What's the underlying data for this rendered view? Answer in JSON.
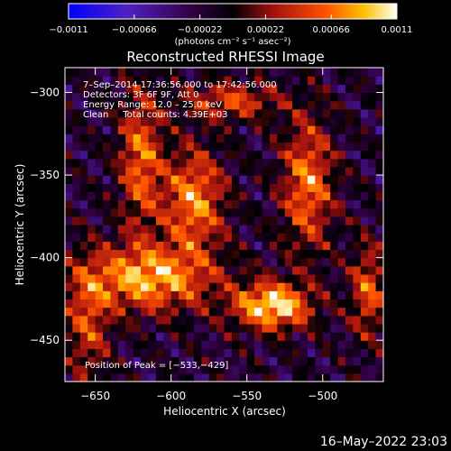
{
  "chart_data": {
    "type": "heatmap",
    "title": "Reconstructed RHESSI Image",
    "xlabel": "Heliocentric X (arcsec)",
    "ylabel": "Heliocentric Y (arcsec)",
    "xlim": [
      -670,
      -460
    ],
    "ylim": [
      -475,
      -285
    ],
    "x_ticks": [
      -650,
      -600,
      -550,
      -500
    ],
    "y_ticks": [
      -300,
      -350,
      -400,
      -450
    ],
    "x_tick_labels": [
      "−650",
      "−600",
      "−550",
      "−500"
    ],
    "y_tick_labels": [
      "−300",
      "−350",
      "−400",
      "−450"
    ],
    "colorbar": {
      "min": -0.0011,
      "max": 0.0011,
      "ticks": [
        -0.0011,
        -0.00066,
        -0.00022,
        0.00022,
        0.00066,
        0.0011
      ],
      "tick_labels": [
        "−0.0011",
        "−0.00066",
        "−0.00022",
        "0.00022",
        "0.00066",
        "0.0011"
      ],
      "units": "(photons cm⁻² s⁻¹ asec⁻²)"
    },
    "annotations": [
      "7–Sep–2014 17:36:56.000 to 17:42:56.000",
      "Detectors: 3F 6F 9F, Att 0",
      "Energy Range: 12.0 – 25.0 keV",
      "Clean     Total counts: 4.39E+03"
    ],
    "peak_label": "Position of Peak = [−533,−429]",
    "peak": [
      -533,
      -429
    ],
    "sources": [
      {
        "x": -533,
        "y": -429,
        "sx": 18,
        "sy": 10,
        "amp": 1.0
      },
      {
        "x": -615,
        "y": -412,
        "sx": 30,
        "sy": 14,
        "amp": 0.85
      },
      {
        "x": -585,
        "y": -365,
        "sx": 14,
        "sy": 22,
        "amp": 0.75
      },
      {
        "x": -620,
        "y": -340,
        "sx": 10,
        "sy": 30,
        "amp": 0.65
      },
      {
        "x": -510,
        "y": -355,
        "sx": 12,
        "sy": 28,
        "amp": 0.7
      },
      {
        "x": -470,
        "y": -420,
        "sx": 8,
        "sy": 20,
        "amp": 0.6
      },
      {
        "x": -560,
        "y": -305,
        "sx": 22,
        "sy": 8,
        "amp": 0.55
      },
      {
        "x": -655,
        "y": -440,
        "sx": 10,
        "sy": 25,
        "amp": 0.5
      }
    ]
  },
  "footer": {
    "timestamp": "16–May–2022 23:03"
  }
}
